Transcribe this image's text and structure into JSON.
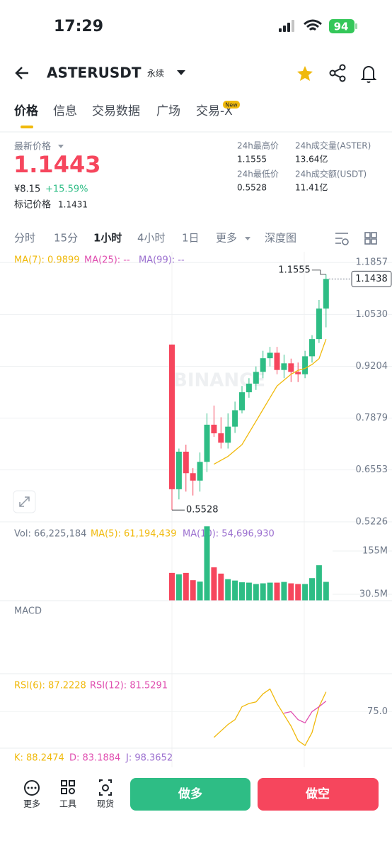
{
  "status_bar": {
    "time": "17:29",
    "battery": "94"
  },
  "header": {
    "symbol": "ASTERUSDT",
    "contract": "永续"
  },
  "tabs": [
    "价格",
    "信息",
    "交易数据",
    "广场",
    "交易-X"
  ],
  "new_badge": "New",
  "ticker": {
    "last_price_label": "最新价格",
    "last_price": "1.1443",
    "cny": "¥8.15",
    "change": "+15.59%",
    "mark_label": "标记价格",
    "mark_price": "1.1431",
    "stats": [
      {
        "label": "24h最高价",
        "value": "1.1555"
      },
      {
        "label": "24h成交量(ASTER)",
        "value": "13.64亿"
      },
      {
        "label": "24h最低价",
        "value": "0.5528"
      },
      {
        "label": "24h成交额(USDT)",
        "value": "11.41亿"
      }
    ]
  },
  "intervals": [
    "分时",
    "15分",
    "1小时",
    "4小时",
    "1日",
    "更多",
    "深度图"
  ],
  "kline": {
    "ma_labels": [
      "MA(7): 0.9899",
      "MA(25): --",
      "MA(99): --"
    ],
    "watermark": "BINANCE",
    "up_color": "#2ebd85",
    "down_color": "#f6465d",
    "ma_color": "#f0b90b",
    "ylim": [
      0.506,
      1.2133
    ],
    "yticks": [
      1.1857,
      {
        "value": 1.053,
        "label": "1.0530"
      },
      0.9204,
      0.7879,
      0.6553,
      0.5226
    ],
    "candles": {
      "open": [
        0.976,
        0.606,
        0.702,
        0.647,
        0.628,
        0.676,
        0.771,
        0.749,
        0.725,
        0.766,
        0.808,
        0.854,
        0.876,
        0.906,
        0.941,
        0.955,
        0.911,
        0.928,
        0.906,
        0.9,
        0.946,
        0.99,
        1.068
      ],
      "high": [
        0.976,
        0.71,
        0.72,
        0.66,
        0.7,
        0.8,
        0.82,
        0.79,
        0.8,
        0.83,
        0.87,
        0.89,
        0.92,
        0.96,
        0.97,
        0.97,
        0.95,
        0.94,
        0.93,
        0.96,
        1.0,
        1.09,
        1.1555
      ],
      "low": [
        0.5528,
        0.58,
        0.6,
        0.59,
        0.6,
        0.65,
        0.74,
        0.71,
        0.71,
        0.75,
        0.8,
        0.84,
        0.86,
        0.89,
        0.92,
        0.9,
        0.89,
        0.88,
        0.88,
        0.89,
        0.93,
        0.98,
        1.02
      ],
      "close": [
        0.606,
        0.702,
        0.647,
        0.628,
        0.676,
        0.771,
        0.749,
        0.725,
        0.766,
        0.808,
        0.854,
        0.876,
        0.906,
        0.941,
        0.955,
        0.911,
        0.928,
        0.906,
        0.9,
        0.946,
        0.99,
        1.068,
        1.1438
      ]
    },
    "ma7": [
      null,
      null,
      null,
      null,
      null,
      null,
      0.67,
      0.68,
      0.69,
      0.705,
      0.72,
      0.75,
      0.78,
      0.81,
      0.84,
      0.87,
      0.885,
      0.9,
      0.91,
      0.915,
      0.925,
      0.94,
      0.9899
    ]
  },
  "volume": {
    "labels": [
      "Vol: 66,225,184",
      "MA(5): 61,194,439",
      "MA(10): 54,696,930"
    ],
    "ylim": [
      12100000,
      230500000
    ],
    "yticks": [
      {
        "value": 155000000,
        "label": "155M"
      },
      {
        "value": 30500000,
        "label": "30.5M"
      }
    ],
    "values": [
      92000000,
      88000000,
      92000000,
      71000000,
      67000000,
      226000000,
      108000000,
      90000000,
      74000000,
      70000000,
      65000000,
      64000000,
      60000000,
      62000000,
      64000000,
      64000000,
      66000000,
      62000000,
      60000000,
      60000000,
      77000000,
      114000000,
      66225184
    ]
  },
  "macd": {
    "label": "MACD"
  },
  "rsi": {
    "labels": [
      "RSI(6): 87.2228",
      "RSI(12): 81.5291"
    ],
    "ylim": [
      52.3,
      94.1
    ],
    "yticks": [
      {
        "value": 75,
        "label": "75.0"
      }
    ],
    "rsi6": [
      null,
      null,
      null,
      null,
      null,
      null,
      59,
      63,
      67,
      70,
      78,
      80,
      81,
      86,
      89,
      80,
      73,
      66,
      57,
      54,
      62,
      78,
      87.2228
    ],
    "rsi12": [
      null,
      null,
      null,
      null,
      null,
      null,
      null,
      null,
      null,
      null,
      null,
      null,
      null,
      null,
      null,
      null,
      74,
      75,
      70,
      68,
      75,
      78,
      81.5291
    ]
  },
  "kdj": {
    "labels": [
      "K: 88.2474",
      "D: 83.1884",
      "J: 98.3652"
    ]
  },
  "bottom_bar": {
    "tools": [
      "更多",
      "工具",
      "现货"
    ],
    "buy": "做多",
    "sell": "做空"
  }
}
